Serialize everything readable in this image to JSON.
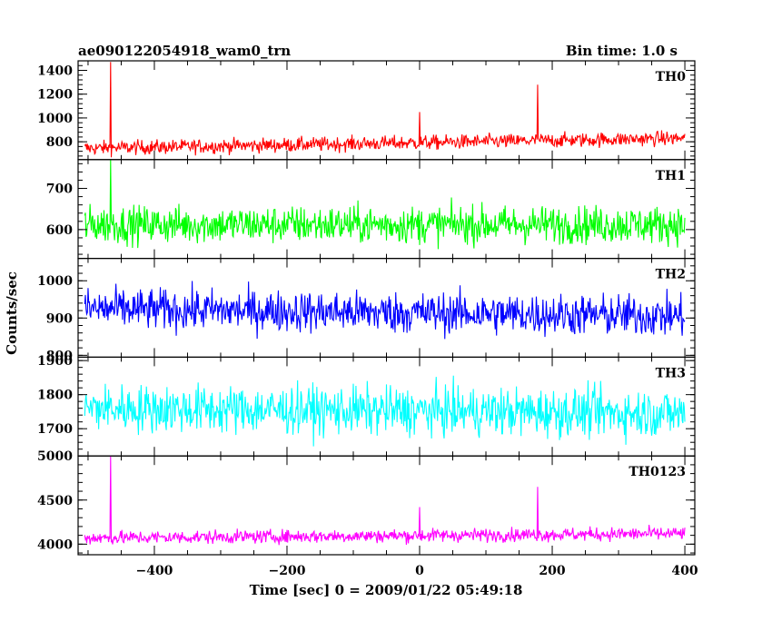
{
  "header": {
    "title": "ae090122054918_wam0_trn",
    "bin_time": "Bin time: 1.0 s"
  },
  "chart_data": {
    "type": "line",
    "xlabel": "Time [sec] 0 = 2009/01/22 05:49:18",
    "ylabel": "Counts/sec",
    "xlim": [
      -515,
      415
    ],
    "x_ticks": [
      -400,
      -200,
      0,
      200,
      400
    ],
    "x_range": [
      -505,
      400
    ],
    "bin_time_s": 1.0,
    "panels": [
      {
        "name": "TH0",
        "color": "#ff0000",
        "ylim": [
          650,
          1480
        ],
        "y_ticks": [
          800,
          1000,
          1200,
          1400
        ],
        "base_start": 745,
        "base_end": 830,
        "noise": 60,
        "spikes": [
          {
            "x": -466,
            "y": 1470
          },
          {
            "x": 0,
            "y": 1050
          },
          {
            "x": 178,
            "y": 1280
          }
        ]
      },
      {
        "name": "TH1",
        "color": "#00ff00",
        "ylim": [
          530,
          770
        ],
        "y_ticks": [
          600,
          700
        ],
        "base_start": 612,
        "base_end": 612,
        "noise": 45,
        "spikes": [
          {
            "x": -466,
            "y": 770
          }
        ]
      },
      {
        "name": "TH2",
        "color": "#0000ff",
        "ylim": [
          795,
          1060
        ],
        "y_ticks": [
          800,
          900,
          1000
        ],
        "base_start": 925,
        "base_end": 905,
        "noise": 55,
        "spikes": []
      },
      {
        "name": "TH3",
        "color": "#00ffff",
        "ylim": [
          1620,
          1910
        ],
        "y_ticks": [
          1700,
          1800,
          1900
        ],
        "base_start": 1760,
        "base_end": 1745,
        "noise": 70,
        "spikes": []
      },
      {
        "name": "TH0123",
        "color": "#ff00ff",
        "ylim": [
          3880,
          5000
        ],
        "y_ticks": [
          4000,
          4500,
          5000
        ],
        "base_start": 4070,
        "base_end": 4120,
        "noise": 75,
        "spikes": [
          {
            "x": -466,
            "y": 5000
          },
          {
            "x": 0,
            "y": 4420
          },
          {
            "x": 178,
            "y": 4650
          }
        ]
      }
    ]
  }
}
